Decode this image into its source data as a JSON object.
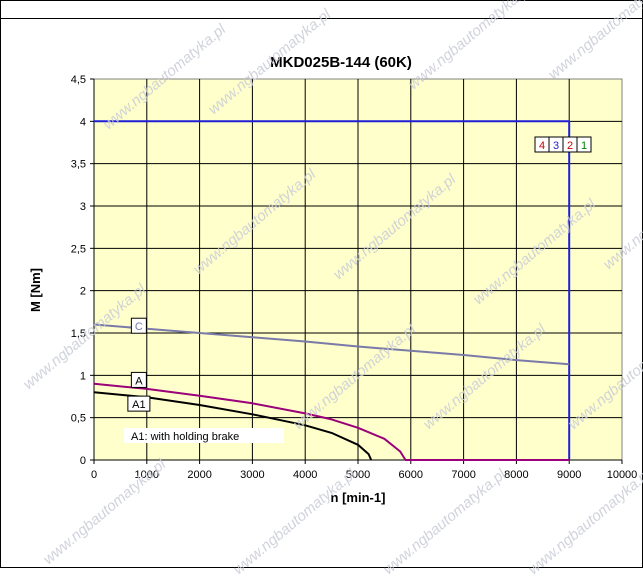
{
  "chart_data": {
    "type": "line",
    "title": "MKD025B-144 (60K)",
    "xlabel": "n [min-1]",
    "ylabel": "M [Nm]",
    "xlim": [
      0,
      10000
    ],
    "ylim": [
      0,
      4.5
    ],
    "x_ticks": [
      "0",
      "1000",
      "2000",
      "3000",
      "4000",
      "5000",
      "6000",
      "7000",
      "8000",
      "9000",
      "10000"
    ],
    "y_ticks": [
      "0",
      "0,5",
      "1",
      "1,5",
      "2",
      "2,5",
      "3",
      "3,5",
      "4",
      "4,5"
    ],
    "grid": true,
    "background_color": "#ffffcc",
    "series": [
      {
        "name": "4 3 2 1",
        "color": "#1f1fd6",
        "points": [
          [
            0,
            4.0
          ],
          [
            9000,
            4.0
          ],
          [
            9000,
            0
          ]
        ]
      },
      {
        "name": "C",
        "color": "#7a7aa8",
        "points": [
          [
            0,
            1.6
          ],
          [
            1000,
            1.55
          ],
          [
            2000,
            1.5
          ],
          [
            3000,
            1.45
          ],
          [
            4000,
            1.4
          ],
          [
            5000,
            1.34
          ],
          [
            6000,
            1.29
          ],
          [
            7000,
            1.24
          ],
          [
            8000,
            1.18
          ],
          [
            9000,
            1.13
          ]
        ]
      },
      {
        "name": "A",
        "color": "#99007a",
        "points": [
          [
            0,
            0.9
          ],
          [
            1000,
            0.84
          ],
          [
            2000,
            0.76
          ],
          [
            3000,
            0.67
          ],
          [
            4000,
            0.55
          ],
          [
            4500,
            0.48
          ],
          [
            5000,
            0.38
          ],
          [
            5500,
            0.25
          ],
          [
            5800,
            0.1
          ],
          [
            5900,
            0
          ],
          [
            9000,
            0
          ]
        ]
      },
      {
        "name": "A1",
        "color": "#000000",
        "points": [
          [
            0,
            0.8
          ],
          [
            1000,
            0.74
          ],
          [
            2000,
            0.65
          ],
          [
            3000,
            0.54
          ],
          [
            4000,
            0.41
          ],
          [
            4500,
            0.32
          ],
          [
            5000,
            0.18
          ],
          [
            5200,
            0.07
          ],
          [
            5250,
            0
          ]
        ]
      }
    ],
    "legend_box": {
      "items": [
        {
          "label": "4",
          "color": "#cc0000"
        },
        {
          "label": "3",
          "color": "#1f1fd6"
        },
        {
          "label": "2",
          "color": "#cc0000"
        },
        {
          "label": "1",
          "color": "#008000"
        }
      ]
    },
    "curve_labels": [
      {
        "label": "C",
        "color": "#7a7aa8",
        "x": 850,
        "y": 1.58
      },
      {
        "label": "A",
        "color": "#000000",
        "x": 850,
        "y": 0.94
      },
      {
        "label": "A1",
        "color": "#000000",
        "x": 850,
        "y": 0.66
      }
    ],
    "annotation": "A1: with holding brake",
    "watermark": "www.ngbautomatyka.pl"
  }
}
